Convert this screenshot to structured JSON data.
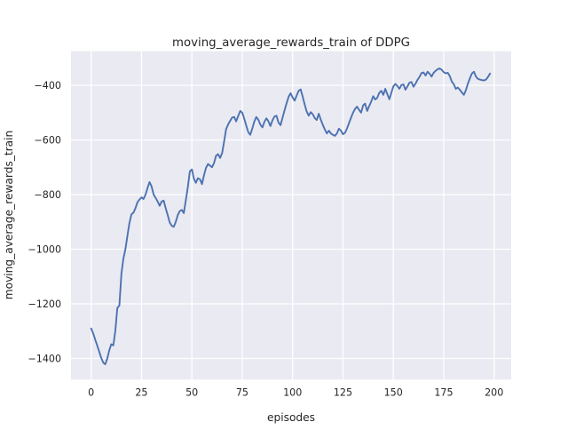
{
  "chart_data": {
    "type": "line",
    "title": "moving_average_rewards_train of DDPG",
    "xlabel": "episodes",
    "ylabel": "moving_average_rewards_train",
    "xlim": [
      -10,
      208.5
    ],
    "ylim": [
      -1477,
      -275
    ],
    "xticks": [
      0,
      25,
      50,
      75,
      100,
      125,
      150,
      175,
      200
    ],
    "yticks": [
      -1400,
      -1200,
      -1000,
      -800,
      -600,
      -400
    ],
    "grid": true,
    "legend_position": "none",
    "style": {
      "figure_facecolor": "#FFFFFF",
      "axes_facecolor": "#EAEAF2",
      "grid_color": "#FFFFFF",
      "text_color": "#262626",
      "line_width": 1.9
    },
    "series": [
      {
        "name": "DDPG",
        "color": "#4C72B0",
        "x": [
          0,
          1,
          2,
          3,
          4,
          5,
          6,
          7,
          8,
          9,
          10,
          11,
          12,
          13,
          14,
          15,
          16,
          17,
          18,
          19,
          20,
          21,
          22,
          23,
          24,
          25,
          26,
          27,
          28,
          29,
          30,
          31,
          32,
          33,
          34,
          35,
          36,
          37,
          38,
          39,
          40,
          41,
          42,
          43,
          44,
          45,
          46,
          47,
          48,
          49,
          50,
          51,
          52,
          53,
          54,
          55,
          56,
          57,
          58,
          59,
          60,
          61,
          62,
          63,
          64,
          65,
          66,
          67,
          68,
          69,
          70,
          71,
          72,
          73,
          74,
          75,
          76,
          77,
          78,
          79,
          80,
          81,
          82,
          83,
          84,
          85,
          86,
          87,
          88,
          89,
          90,
          91,
          92,
          93,
          94,
          95,
          96,
          97,
          98,
          99,
          100,
          101,
          102,
          103,
          104,
          105,
          106,
          107,
          108,
          109,
          110,
          111,
          112,
          113,
          114,
          115,
          116,
          117,
          118,
          119,
          120,
          121,
          122,
          123,
          124,
          125,
          126,
          127,
          128,
          129,
          130,
          131,
          132,
          133,
          134,
          135,
          136,
          137,
          138,
          139,
          140,
          141,
          142,
          143,
          144,
          145,
          146,
          147,
          148,
          149,
          150,
          151,
          152,
          153,
          154,
          155,
          156,
          157,
          158,
          159,
          160,
          161,
          162,
          163,
          164,
          165,
          166,
          167,
          168,
          169,
          170,
          171,
          172,
          173,
          174,
          175,
          176,
          177,
          178,
          179,
          180,
          181,
          182,
          183,
          184,
          185,
          186,
          187,
          188,
          189,
          190,
          191,
          192,
          193,
          194,
          195,
          196,
          197,
          198
        ],
        "y": [
          -1290,
          -1308,
          -1330,
          -1352,
          -1375,
          -1398,
          -1415,
          -1421,
          -1400,
          -1370,
          -1348,
          -1352,
          -1300,
          -1215,
          -1206,
          -1090,
          -1035,
          -1000,
          -950,
          -905,
          -872,
          -866,
          -850,
          -828,
          -818,
          -810,
          -816,
          -800,
          -775,
          -754,
          -770,
          -800,
          -812,
          -825,
          -841,
          -825,
          -822,
          -850,
          -875,
          -902,
          -914,
          -918,
          -900,
          -875,
          -860,
          -856,
          -868,
          -820,
          -771,
          -715,
          -708,
          -742,
          -757,
          -740,
          -744,
          -762,
          -730,
          -702,
          -688,
          -694,
          -700,
          -684,
          -658,
          -652,
          -666,
          -648,
          -606,
          -560,
          -543,
          -530,
          -518,
          -516,
          -532,
          -512,
          -494,
          -500,
          -522,
          -548,
          -572,
          -581,
          -558,
          -532,
          -516,
          -526,
          -544,
          -554,
          -534,
          -521,
          -532,
          -549,
          -528,
          -514,
          -511,
          -536,
          -546,
          -518,
          -492,
          -466,
          -442,
          -429,
          -444,
          -456,
          -438,
          -420,
          -415,
          -442,
          -470,
          -496,
          -511,
          -498,
          -506,
          -520,
          -527,
          -504,
          -526,
          -545,
          -562,
          -576,
          -566,
          -576,
          -581,
          -585,
          -576,
          -559,
          -566,
          -579,
          -574,
          -558,
          -538,
          -519,
          -500,
          -486,
          -478,
          -490,
          -500,
          -473,
          -467,
          -494,
          -476,
          -460,
          -440,
          -452,
          -446,
          -428,
          -420,
          -435,
          -413,
          -432,
          -451,
          -428,
          -404,
          -395,
          -402,
          -413,
          -399,
          -397,
          -416,
          -404,
          -390,
          -388,
          -405,
          -394,
          -380,
          -369,
          -355,
          -353,
          -364,
          -350,
          -358,
          -368,
          -354,
          -347,
          -341,
          -338,
          -343,
          -352,
          -356,
          -354,
          -366,
          -386,
          -396,
          -413,
          -408,
          -416,
          -426,
          -435,
          -418,
          -394,
          -374,
          -357,
          -350,
          -368,
          -376,
          -379,
          -381,
          -382,
          -379,
          -369,
          -357
        ]
      }
    ]
  }
}
